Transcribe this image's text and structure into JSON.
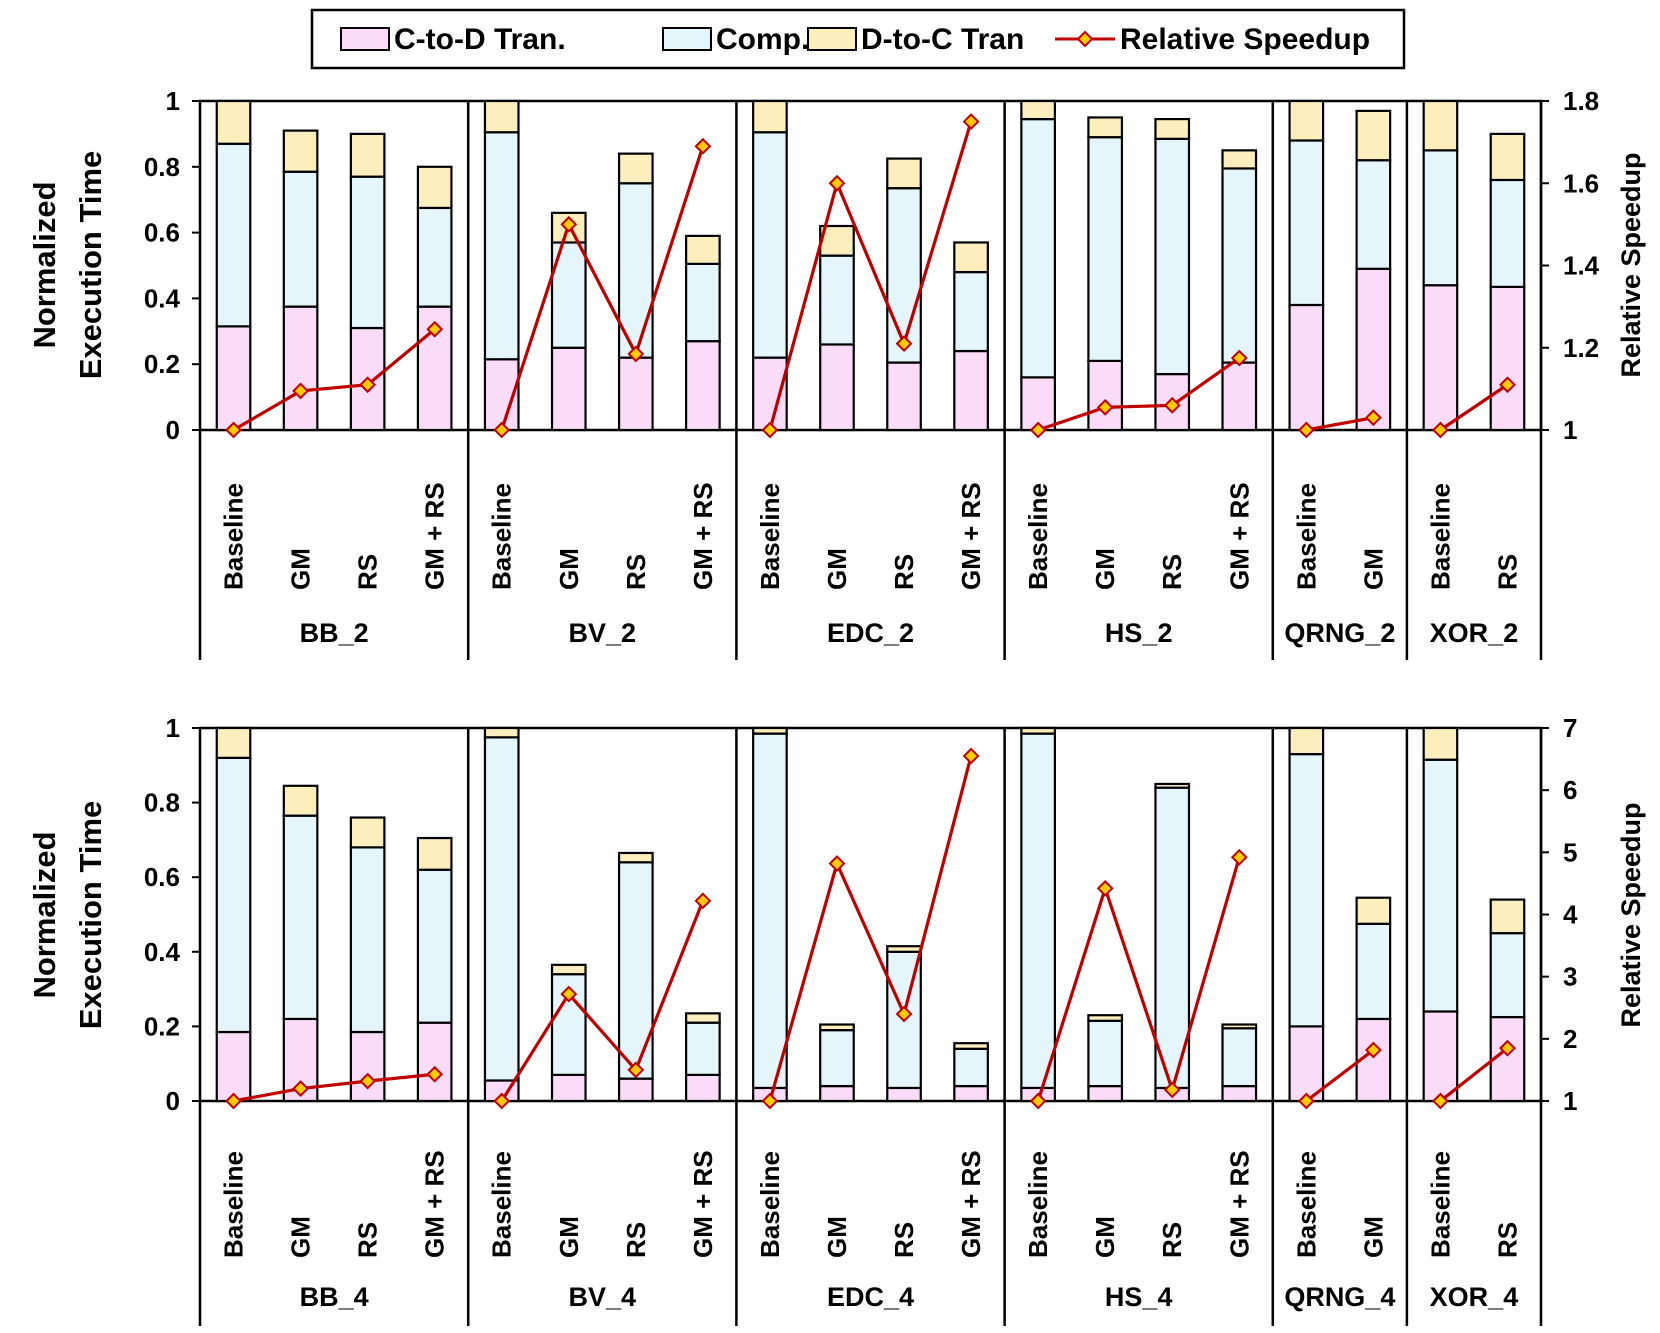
{
  "legend": {
    "items": [
      {
        "label": "C-to-D Tran.",
        "kind": "box",
        "color": "#fadcf8"
      },
      {
        "label": "Comp.",
        "kind": "box",
        "color": "#e4f6fb"
      },
      {
        "label": "D-to-C Tran",
        "kind": "box",
        "color": "#fdeebe"
      },
      {
        "label": "Relative Speedup",
        "kind": "line",
        "color": "#c00000",
        "marker_fill": "#ffcc00"
      }
    ]
  },
  "chart_data": [
    {
      "type": "stacked-bar+line",
      "ylabel_lines": [
        "Normalized",
        "Execution Time"
      ],
      "y2label": "Relative Speedup",
      "ylim": [
        0,
        1
      ],
      "yticks": [
        "0",
        "0.2",
        "0.4",
        "0.6",
        "0.8",
        "1"
      ],
      "y2lim": [
        1,
        1.8
      ],
      "y2ticks": [
        "1",
        "1.2",
        "1.4",
        "1.6",
        "1.8"
      ],
      "groups": [
        {
          "name": "BB_2",
          "categories": [
            "Baseline",
            "GM",
            "RS",
            "GM + RS"
          ],
          "c2d": [
            0.315,
            0.375,
            0.31,
            0.375
          ],
          "comp": [
            0.555,
            0.41,
            0.46,
            0.3
          ],
          "d2c": [
            0.13,
            0.125,
            0.13,
            0.125
          ],
          "speedup": [
            1.0,
            1.095,
            1.11,
            1.245
          ]
        },
        {
          "name": "BV_2",
          "categories": [
            "Baseline",
            "GM",
            "RS",
            "GM + RS"
          ],
          "c2d": [
            0.215,
            0.25,
            0.22,
            0.27
          ],
          "comp": [
            0.69,
            0.32,
            0.53,
            0.235
          ],
          "d2c": [
            0.095,
            0.09,
            0.09,
            0.085
          ],
          "speedup": [
            1.0,
            1.5,
            1.185,
            1.69
          ]
        },
        {
          "name": "EDC_2",
          "categories": [
            "Baseline",
            "GM",
            "RS",
            "GM + RS"
          ],
          "c2d": [
            0.22,
            0.26,
            0.205,
            0.24
          ],
          "comp": [
            0.685,
            0.27,
            0.53,
            0.24
          ],
          "d2c": [
            0.095,
            0.09,
            0.09,
            0.09
          ],
          "speedup": [
            1.0,
            1.6,
            1.21,
            1.75
          ]
        },
        {
          "name": "HS_2",
          "categories": [
            "Baseline",
            "GM",
            "RS",
            "GM + RS"
          ],
          "c2d": [
            0.16,
            0.21,
            0.17,
            0.205
          ],
          "comp": [
            0.785,
            0.68,
            0.715,
            0.59
          ],
          "d2c": [
            0.055,
            0.06,
            0.06,
            0.055
          ],
          "speedup": [
            1.0,
            1.055,
            1.06,
            1.175
          ]
        },
        {
          "name": "QRNG_2",
          "categories": [
            "Baseline",
            "GM"
          ],
          "c2d": [
            0.38,
            0.49
          ],
          "comp": [
            0.5,
            0.33
          ],
          "d2c": [
            0.12,
            0.15
          ],
          "speedup": [
            1.0,
            1.03
          ]
        },
        {
          "name": "XOR_2",
          "categories": [
            "Baseline",
            "RS"
          ],
          "c2d": [
            0.44,
            0.435
          ],
          "comp": [
            0.41,
            0.325
          ],
          "d2c": [
            0.15,
            0.14
          ],
          "speedup": [
            1.0,
            1.11
          ]
        }
      ]
    },
    {
      "type": "stacked-bar+line",
      "ylabel_lines": [
        "Normalized",
        "Execution Time"
      ],
      "y2label": "Relative Speedup",
      "ylim": [
        0,
        1
      ],
      "yticks": [
        "0",
        "0.2",
        "0.4",
        "0.6",
        "0.8",
        "1"
      ],
      "y2lim": [
        1,
        7
      ],
      "y2ticks": [
        "1",
        "2",
        "3",
        "4",
        "5",
        "6",
        "7"
      ],
      "groups": [
        {
          "name": "BB_4",
          "categories": [
            "Baseline",
            "GM",
            "RS",
            "GM + RS"
          ],
          "c2d": [
            0.185,
            0.22,
            0.185,
            0.21
          ],
          "comp": [
            0.735,
            0.545,
            0.495,
            0.41
          ],
          "d2c": [
            0.08,
            0.08,
            0.08,
            0.085
          ],
          "speedup": [
            1.0,
            1.2,
            1.32,
            1.43
          ]
        },
        {
          "name": "BV_4",
          "categories": [
            "Baseline",
            "GM",
            "RS",
            "GM + RS"
          ],
          "c2d": [
            0.055,
            0.07,
            0.06,
            0.07
          ],
          "comp": [
            0.92,
            0.27,
            0.58,
            0.14
          ],
          "d2c": [
            0.025,
            0.025,
            0.025,
            0.025
          ],
          "speedup": [
            1.0,
            2.72,
            1.5,
            4.22
          ]
        },
        {
          "name": "EDC_4",
          "categories": [
            "Baseline",
            "GM",
            "RS",
            "GM + RS"
          ],
          "c2d": [
            0.035,
            0.04,
            0.035,
            0.04
          ],
          "comp": [
            0.95,
            0.15,
            0.365,
            0.1
          ],
          "d2c": [
            0.015,
            0.015,
            0.015,
            0.015
          ],
          "speedup": [
            1.0,
            4.82,
            2.4,
            6.55
          ]
        },
        {
          "name": "HS_4",
          "categories": [
            "Baseline",
            "GM",
            "RS",
            "GM + RS"
          ],
          "c2d": [
            0.035,
            0.04,
            0.035,
            0.04
          ],
          "comp": [
            0.95,
            0.175,
            0.805,
            0.155
          ],
          "d2c": [
            0.015,
            0.015,
            0.01,
            0.01
          ],
          "speedup": [
            1.0,
            4.42,
            1.18,
            4.92
          ]
        },
        {
          "name": "QRNG_4",
          "categories": [
            "Baseline",
            "GM"
          ],
          "c2d": [
            0.2,
            0.22
          ],
          "comp": [
            0.73,
            0.255
          ],
          "d2c": [
            0.07,
            0.07
          ],
          "speedup": [
            1.0,
            1.82
          ]
        },
        {
          "name": "XOR_4",
          "categories": [
            "Baseline",
            "RS"
          ],
          "c2d": [
            0.24,
            0.225
          ],
          "comp": [
            0.675,
            0.225
          ],
          "d2c": [
            0.085,
            0.09
          ],
          "speedup": [
            1.0,
            1.85
          ]
        }
      ]
    }
  ]
}
